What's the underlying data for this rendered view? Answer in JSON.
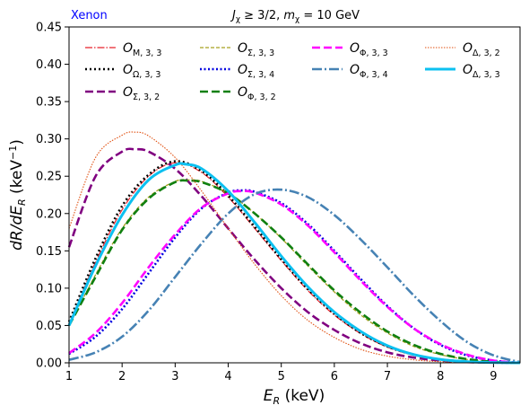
{
  "chart_data": {
    "type": "line",
    "annotation": "Xenon",
    "annotation_color": "#0000ff",
    "title": "J_χ ≥ 3/2, m_χ = 10 GeV",
    "xlabel": "E_R (keV)",
    "ylabel": "dR/dE_R (keV⁻¹)",
    "xlim": [
      1,
      9.5
    ],
    "ylim": [
      0,
      0.45
    ],
    "xticks": [
      "1",
      "2",
      "3",
      "4",
      "5",
      "6",
      "7",
      "8",
      "9"
    ],
    "yticks": [
      "0.00",
      "0.05",
      "0.10",
      "0.15",
      "0.20",
      "0.25",
      "0.30",
      "0.35",
      "0.40",
      "0.45"
    ],
    "grid": false,
    "legend_position": "top",
    "series": [
      {
        "name": "O_{M,3,3}",
        "sub": "M, 3, 3",
        "color": "#e8202a",
        "dash": "8,2,1.5,2",
        "width": 1.2,
        "x": [
          1,
          1.5,
          2,
          2.5,
          3,
          3.5,
          4,
          4.5,
          5,
          5.5,
          6,
          6.5,
          7,
          7.5,
          8,
          8.5,
          9,
          9.5
        ],
        "y": [
          0.052,
          0.135,
          0.205,
          0.25,
          0.268,
          0.255,
          0.222,
          0.18,
          0.137,
          0.097,
          0.064,
          0.039,
          0.021,
          0.01,
          0.004,
          0.0015,
          0.0004,
          0
        ]
      },
      {
        "name": "O_{Ω,3,3}",
        "sub": "Ω, 3, 3",
        "color": "#000000",
        "dash": "2,3",
        "width": 2.6,
        "x": [
          1,
          1.5,
          2,
          2.5,
          3,
          3.5,
          4,
          4.5,
          5,
          5.5,
          6,
          6.5,
          7,
          7.5,
          8,
          8.5,
          9,
          9.5
        ],
        "y": [
          0.055,
          0.14,
          0.21,
          0.252,
          0.27,
          0.257,
          0.224,
          0.182,
          0.139,
          0.099,
          0.066,
          0.04,
          0.022,
          0.011,
          0.0045,
          0.0016,
          0.0004,
          0
        ]
      },
      {
        "name": "O_{Σ,3,2}",
        "sub": "Σ, 3, 2",
        "color": "#800080",
        "dash": "9,4",
        "width": 2.6,
        "x": [
          1,
          1.5,
          2,
          2.25,
          2.5,
          3,
          3.5,
          4,
          4.5,
          5,
          5.5,
          6,
          6.5,
          7,
          7.5,
          8,
          8.5,
          9,
          9.5
        ],
        "y": [
          0.155,
          0.25,
          0.283,
          0.286,
          0.283,
          0.26,
          0.223,
          0.18,
          0.138,
          0.1,
          0.068,
          0.044,
          0.026,
          0.014,
          0.007,
          0.003,
          0.001,
          0.0003,
          0
        ]
      },
      {
        "name": "O_{Σ,3,3}",
        "sub": "Σ, 3, 3",
        "color": "#a8a020",
        "dash": "4,2",
        "width": 1.3,
        "x": [
          1,
          1.5,
          2,
          2.5,
          3,
          3.25,
          3.5,
          4,
          4.5,
          5,
          5.5,
          6,
          6.5,
          7,
          7.5,
          8,
          8.5,
          9,
          9.5
        ],
        "y": [
          0.05,
          0.118,
          0.18,
          0.222,
          0.243,
          0.245,
          0.243,
          0.227,
          0.2,
          0.167,
          0.13,
          0.095,
          0.064,
          0.04,
          0.022,
          0.011,
          0.0045,
          0.0012,
          0
        ]
      },
      {
        "name": "O_{Σ,3,4}",
        "sub": "Σ, 3, 4",
        "color": "#0000e0",
        "dash": "2,2.5",
        "width": 2.6,
        "x": [
          1,
          1.5,
          2,
          2.5,
          3,
          3.5,
          4,
          4.3,
          4.5,
          5,
          5.5,
          6,
          6.5,
          7,
          7.5,
          8,
          8.5,
          9,
          9.5
        ],
        "y": [
          0.012,
          0.035,
          0.072,
          0.12,
          0.168,
          0.207,
          0.228,
          0.231,
          0.229,
          0.214,
          0.186,
          0.15,
          0.112,
          0.076,
          0.046,
          0.024,
          0.01,
          0.003,
          0
        ]
      },
      {
        "name": "O_{Φ,3,2}",
        "sub": "Φ, 3, 2",
        "color": "#108010",
        "dash": "9,4",
        "width": 2.6,
        "x": [
          1,
          1.5,
          2,
          2.5,
          3,
          3.25,
          3.5,
          4,
          4.5,
          5,
          5.5,
          6,
          6.5,
          7,
          7.5,
          8,
          8.5,
          9,
          9.5
        ],
        "y": [
          0.05,
          0.115,
          0.178,
          0.22,
          0.242,
          0.244,
          0.242,
          0.227,
          0.2,
          0.168,
          0.132,
          0.097,
          0.067,
          0.042,
          0.024,
          0.012,
          0.005,
          0.0014,
          0
        ]
      },
      {
        "name": "O_{Φ,3,3}",
        "sub": "Φ, 3, 3",
        "color": "#ff00ff",
        "dash": "9,4",
        "width": 2.6,
        "x": [
          1,
          1.5,
          2,
          2.5,
          3,
          3.5,
          4,
          4.25,
          4.5,
          5,
          5.5,
          6,
          6.5,
          7,
          7.5,
          8,
          8.5,
          9,
          9.5
        ],
        "y": [
          0.013,
          0.04,
          0.08,
          0.128,
          0.172,
          0.208,
          0.227,
          0.23,
          0.228,
          0.212,
          0.184,
          0.148,
          0.11,
          0.075,
          0.046,
          0.025,
          0.011,
          0.003,
          0
        ]
      },
      {
        "name": "O_{Φ,3,4}",
        "sub": "Φ, 3, 4",
        "color": "#4682b4",
        "dash": "11,3,2,3",
        "width": 2.6,
        "x": [
          1,
          1.5,
          2,
          2.5,
          3,
          3.5,
          4,
          4.5,
          5,
          5.5,
          6,
          6.5,
          7,
          7.5,
          8,
          8.5,
          9,
          9.5
        ],
        "y": [
          0.004,
          0.014,
          0.035,
          0.07,
          0.115,
          0.16,
          0.2,
          0.226,
          0.232,
          0.222,
          0.198,
          0.165,
          0.128,
          0.09,
          0.056,
          0.028,
          0.01,
          0.001
        ]
      },
      {
        "name": "O_{Δ,3,2}",
        "sub": "Δ, 3, 2",
        "color": "#e05010",
        "dash": "1.5,1.5",
        "width": 1.1,
        "x": [
          1,
          1.5,
          2,
          2.25,
          2.5,
          3,
          3.5,
          4,
          4.5,
          5,
          5.5,
          6,
          6.5,
          7,
          7.5,
          8,
          8.5,
          9,
          9.5
        ],
        "y": [
          0.18,
          0.275,
          0.305,
          0.309,
          0.304,
          0.275,
          0.23,
          0.18,
          0.132,
          0.09,
          0.057,
          0.034,
          0.018,
          0.009,
          0.004,
          0.0015,
          0.0005,
          0.0001,
          0
        ]
      },
      {
        "name": "O_{Δ,3,3}",
        "sub": "Δ, 3, 3",
        "color": "#0cc0f0",
        "dash": "",
        "width": 3.0,
        "x": [
          1,
          1.5,
          2,
          2.5,
          3,
          3.2,
          3.5,
          4,
          4.5,
          5,
          5.5,
          6,
          6.5,
          7,
          7.5,
          8,
          8.5,
          9,
          9.5
        ],
        "y": [
          0.05,
          0.13,
          0.198,
          0.245,
          0.265,
          0.266,
          0.26,
          0.23,
          0.188,
          0.143,
          0.102,
          0.068,
          0.042,
          0.023,
          0.011,
          0.0045,
          0.0015,
          0.0004,
          0
        ]
      }
    ]
  }
}
